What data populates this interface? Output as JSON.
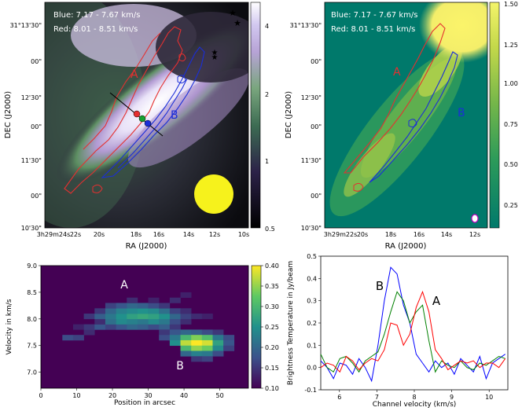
{
  "chart_data": [
    {
      "type": "heatmap",
      "panel": "top-left",
      "legend_lines": [
        "Blue: 7.17 - 7.67 km/s",
        "Red: 8.01 - 8.51 km/s"
      ],
      "xlabel": "RA (J2000)",
      "ylabel": "DEC (J2000)",
      "xticks": [
        "3h29m24s",
        "22s",
        "20s",
        "18s",
        "16s",
        "14s",
        "12s",
        "10s"
      ],
      "yticks": [
        "31°13'30\"",
        "00\"",
        "12'30\"",
        "00\"",
        "11'30\"",
        "00\"",
        "10'30\""
      ],
      "colorbar": {
        "ticks": [
          "4",
          "2",
          "1",
          "0.5"
        ],
        "range": [
          0.5,
          4.5
        ],
        "scale": "log"
      },
      "annotations": [
        "A",
        "B"
      ],
      "stars": 3,
      "beam": "yellow circle, bottom-right"
    },
    {
      "type": "heatmap",
      "panel": "top-right",
      "legend_lines": [
        "Blue: 7.17 - 7.67 km/s",
        "Red: 8.01 - 8.51 km/s"
      ],
      "xlabel": "RA (J2000)",
      "ylabel": "DEC (J2000)",
      "xticks": [
        "3h29m22s",
        "20s",
        "18s",
        "16s",
        "14s",
        "12s"
      ],
      "yticks": [
        "31°13'30\"",
        "00\"",
        "12'30\"",
        "00\"",
        "11'30\"",
        "00\"",
        "10'30\""
      ],
      "colorbar": {
        "ticks": [
          "1.50",
          "1.25",
          "1.00",
          "0.75",
          "0.50",
          "0.25"
        ],
        "range": [
          0.1,
          1.5
        ]
      },
      "annotations": [
        "A",
        "B"
      ]
    },
    {
      "type": "heatmap",
      "panel": "bottom-left",
      "title": "",
      "xlabel": "Position in arcsec",
      "ylabel": "Velocity in km/s",
      "xlim": [
        0,
        58
      ],
      "ylim": [
        6.7,
        9.0
      ],
      "xticks": [
        "0",
        "10",
        "20",
        "30",
        "40",
        "50"
      ],
      "yticks": [
        "9.0",
        "8.5",
        "8.0",
        "7.5",
        "7.0"
      ],
      "colorbar": {
        "ticks": [
          "0.40",
          "0.35",
          "0.30",
          "0.25",
          "0.20",
          "0.15",
          "0.10"
        ],
        "range": [
          0.1,
          0.4
        ]
      },
      "annotations": [
        "A",
        "B"
      ],
      "cell_size": {
        "position": 3.0,
        "velocity": 0.1
      },
      "cells": [
        [
          6,
          7.65,
          0.17
        ],
        [
          9,
          7.65,
          0.16
        ],
        [
          12,
          7.75,
          0.14
        ],
        [
          9,
          7.85,
          0.13
        ],
        [
          12,
          7.85,
          0.15
        ],
        [
          15,
          7.85,
          0.18
        ],
        [
          18,
          7.85,
          0.16
        ],
        [
          21,
          7.85,
          0.18
        ],
        [
          24,
          7.85,
          0.2
        ],
        [
          27,
          7.85,
          0.19
        ],
        [
          30,
          7.85,
          0.17
        ],
        [
          33,
          7.85,
          0.19
        ],
        [
          36,
          7.85,
          0.15
        ],
        [
          15,
          7.95,
          0.14
        ],
        [
          18,
          7.95,
          0.21
        ],
        [
          21,
          7.95,
          0.24
        ],
        [
          24,
          7.95,
          0.23
        ],
        [
          27,
          7.95,
          0.22
        ],
        [
          30,
          7.95,
          0.24
        ],
        [
          33,
          7.95,
          0.22
        ],
        [
          36,
          7.95,
          0.17
        ],
        [
          39,
          7.95,
          0.14
        ],
        [
          12,
          8.05,
          0.15
        ],
        [
          15,
          8.05,
          0.19
        ],
        [
          18,
          8.05,
          0.22
        ],
        [
          21,
          8.05,
          0.25
        ],
        [
          24,
          8.05,
          0.27
        ],
        [
          27,
          8.05,
          0.28
        ],
        [
          30,
          8.05,
          0.27
        ],
        [
          33,
          8.05,
          0.25
        ],
        [
          36,
          8.05,
          0.2
        ],
        [
          39,
          8.05,
          0.16
        ],
        [
          42,
          8.05,
          0.14
        ],
        [
          45,
          8.05,
          0.13
        ],
        [
          15,
          8.15,
          0.15
        ],
        [
          18,
          8.15,
          0.2
        ],
        [
          21,
          8.15,
          0.23
        ],
        [
          24,
          8.15,
          0.24
        ],
        [
          27,
          8.15,
          0.25
        ],
        [
          30,
          8.15,
          0.24
        ],
        [
          33,
          8.15,
          0.21
        ],
        [
          36,
          8.15,
          0.16
        ],
        [
          39,
          8.15,
          0.14
        ],
        [
          18,
          8.25,
          0.16
        ],
        [
          21,
          8.25,
          0.18
        ],
        [
          24,
          8.25,
          0.2
        ],
        [
          27,
          8.25,
          0.19
        ],
        [
          30,
          8.25,
          0.17
        ],
        [
          33,
          8.25,
          0.15
        ],
        [
          24,
          8.35,
          0.14
        ],
        [
          30,
          8.35,
          0.13
        ],
        [
          36,
          8.35,
          0.14
        ],
        [
          39,
          8.45,
          0.13
        ],
        [
          33,
          7.75,
          0.15
        ],
        [
          36,
          7.75,
          0.18
        ],
        [
          39,
          7.75,
          0.2
        ],
        [
          42,
          7.75,
          0.19
        ],
        [
          45,
          7.75,
          0.17
        ],
        [
          48,
          7.75,
          0.15
        ],
        [
          33,
          7.65,
          0.17
        ],
        [
          36,
          7.65,
          0.22
        ],
        [
          39,
          7.65,
          0.3
        ],
        [
          42,
          7.65,
          0.34
        ],
        [
          45,
          7.65,
          0.31
        ],
        [
          48,
          7.65,
          0.22
        ],
        [
          51,
          7.65,
          0.17
        ],
        [
          36,
          7.55,
          0.25
        ],
        [
          39,
          7.55,
          0.37
        ],
        [
          42,
          7.55,
          0.4
        ],
        [
          45,
          7.55,
          0.38
        ],
        [
          48,
          7.55,
          0.27
        ],
        [
          51,
          7.55,
          0.18
        ],
        [
          39,
          7.45,
          0.3
        ],
        [
          42,
          7.45,
          0.35
        ],
        [
          45,
          7.45,
          0.33
        ],
        [
          48,
          7.45,
          0.24
        ],
        [
          51,
          7.45,
          0.16
        ],
        [
          39,
          7.35,
          0.2
        ],
        [
          42,
          7.35,
          0.23
        ],
        [
          45,
          7.35,
          0.22
        ],
        [
          48,
          7.35,
          0.17
        ],
        [
          42,
          7.25,
          0.15
        ],
        [
          45,
          7.25,
          0.16
        ]
      ]
    },
    {
      "type": "line",
      "panel": "bottom-right",
      "xlabel": "Channel velocity (km/s)",
      "ylabel": "Brightness Temperature in Jy/beam",
      "xlim": [
        5.5,
        10.5
      ],
      "ylim": [
        -0.1,
        0.5
      ],
      "xticks": [
        "6",
        "7",
        "8",
        "9",
        "10"
      ],
      "yticks": [
        "0.5",
        "0.4",
        "0.3",
        "0.2",
        "0.1",
        "0.0",
        "-0.1"
      ],
      "annotations": [
        "B",
        "A"
      ],
      "x": [
        5.5,
        5.67,
        5.84,
        6.01,
        6.18,
        6.35,
        6.52,
        6.69,
        6.86,
        7.03,
        7.2,
        7.37,
        7.54,
        7.71,
        7.88,
        8.05,
        8.22,
        8.39,
        8.56,
        8.73,
        8.9,
        9.07,
        9.24,
        9.41,
        9.58,
        9.75,
        9.92,
        10.09,
        10.26,
        10.43
      ],
      "series": [
        {
          "name": "B",
          "color": "#0000ff",
          "values": [
            0.03,
            0.0,
            -0.05,
            0.02,
            0.01,
            -0.03,
            0.04,
            0.0,
            -0.06,
            0.1,
            0.3,
            0.45,
            0.42,
            0.28,
            0.2,
            0.06,
            0.02,
            -0.02,
            0.03,
            0.0,
            0.02,
            -0.03,
            0.04,
            0.01,
            -0.02,
            0.05,
            -0.05,
            0.02,
            0.04,
            0.06
          ]
        },
        {
          "name": "green",
          "color": "#008000",
          "values": [
            0.06,
            0.0,
            -0.02,
            0.04,
            0.05,
            0.02,
            -0.02,
            0.03,
            0.05,
            0.07,
            0.15,
            0.25,
            0.34,
            0.3,
            0.2,
            0.25,
            0.28,
            0.12,
            -0.02,
            0.03,
            0.01,
            0.0,
            0.03,
            0.0,
            -0.01,
            0.02,
            0.01,
            0.03,
            0.05,
            0.04
          ]
        },
        {
          "name": "A",
          "color": "#ff0000",
          "values": [
            0.0,
            0.02,
            0.01,
            -0.02,
            0.05,
            0.03,
            -0.01,
            0.02,
            0.04,
            0.03,
            0.08,
            0.2,
            0.19,
            0.1,
            0.15,
            0.27,
            0.34,
            0.25,
            0.08,
            0.04,
            -0.01,
            0.01,
            0.03,
            0.02,
            0.03,
            0.0,
            0.02,
            0.02,
            0.0,
            0.04
          ]
        }
      ]
    }
  ]
}
